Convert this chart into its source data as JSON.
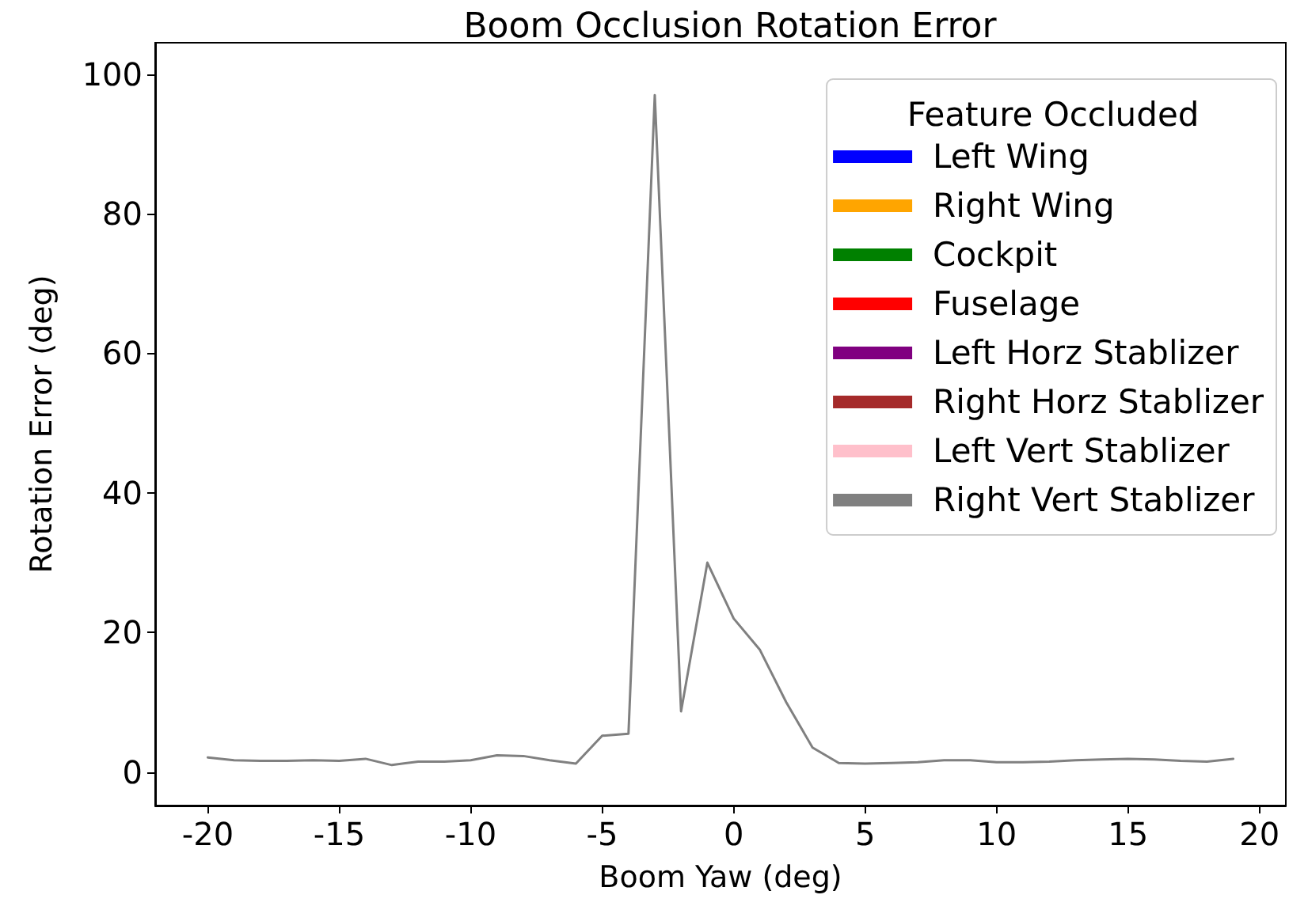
{
  "chart_data": {
    "type": "line",
    "title": "Boom Occlusion Rotation Error",
    "xlabel": "Boom Yaw (deg)",
    "ylabel": "Rotation Error (deg)",
    "legend_title": "Feature Occluded",
    "x": [
      -20,
      -19,
      -18,
      -17,
      -16,
      -15,
      -14,
      -13,
      -12,
      -11,
      -10,
      -9,
      -8,
      -7,
      -6,
      -5,
      -4,
      -3,
      -2,
      -1,
      0,
      1,
      2,
      3,
      4,
      5,
      6,
      7,
      8,
      9,
      10,
      11,
      12,
      13,
      14,
      15,
      16,
      17,
      18,
      19
    ],
    "series": [
      {
        "name": "Left Wing",
        "color": "#0000ff",
        "values": [
          null,
          null,
          null,
          null,
          null,
          null,
          null,
          null,
          null,
          null,
          null,
          null,
          null,
          null,
          null,
          null,
          null,
          null,
          null,
          null,
          null,
          null,
          null,
          null,
          null,
          null,
          null,
          null,
          null,
          null,
          null,
          null,
          null,
          null,
          null,
          null,
          null,
          null,
          null,
          null
        ]
      },
      {
        "name": "Right Wing",
        "color": "#ffa500",
        "values": [
          null,
          null,
          null,
          null,
          null,
          null,
          null,
          null,
          null,
          null,
          null,
          null,
          null,
          null,
          null,
          null,
          null,
          null,
          null,
          null,
          null,
          null,
          null,
          null,
          null,
          null,
          null,
          null,
          null,
          null,
          null,
          null,
          null,
          null,
          null,
          null,
          null,
          null,
          null,
          null
        ]
      },
      {
        "name": "Cockpit",
        "color": "#008000",
        "values": [
          null,
          null,
          null,
          null,
          null,
          null,
          null,
          null,
          null,
          null,
          null,
          null,
          null,
          null,
          null,
          null,
          null,
          null,
          null,
          null,
          null,
          null,
          null,
          null,
          null,
          null,
          null,
          null,
          null,
          null,
          null,
          null,
          null,
          null,
          null,
          null,
          null,
          null,
          null,
          null
        ]
      },
      {
        "name": "Fuselage",
        "color": "#ff0000",
        "values": [
          null,
          null,
          null,
          null,
          null,
          null,
          null,
          null,
          null,
          null,
          null,
          null,
          null,
          null,
          null,
          null,
          null,
          null,
          null,
          null,
          null,
          null,
          null,
          null,
          null,
          null,
          null,
          null,
          null,
          null,
          null,
          null,
          null,
          null,
          null,
          null,
          null,
          null,
          null,
          null
        ]
      },
      {
        "name": "Left Horz Stablizer",
        "color": "#800080",
        "values": [
          null,
          null,
          null,
          null,
          null,
          null,
          null,
          null,
          null,
          null,
          null,
          null,
          null,
          null,
          null,
          null,
          null,
          null,
          null,
          null,
          null,
          null,
          null,
          null,
          null,
          null,
          null,
          null,
          null,
          null,
          null,
          null,
          null,
          null,
          null,
          null,
          null,
          null,
          null,
          null
        ]
      },
      {
        "name": "Right Horz Stablizer",
        "color": "#a52a2a",
        "values": [
          null,
          null,
          null,
          null,
          null,
          null,
          null,
          null,
          null,
          null,
          null,
          null,
          null,
          null,
          null,
          null,
          null,
          null,
          null,
          null,
          null,
          null,
          null,
          null,
          null,
          null,
          null,
          null,
          null,
          null,
          null,
          null,
          null,
          null,
          null,
          null,
          null,
          null,
          null,
          null
        ]
      },
      {
        "name": "Left Vert Stablizer",
        "color": "#ffc0cb",
        "values": [
          null,
          null,
          null,
          null,
          null,
          null,
          null,
          null,
          null,
          null,
          null,
          null,
          null,
          null,
          null,
          null,
          null,
          null,
          null,
          null,
          null,
          null,
          null,
          null,
          null,
          null,
          null,
          null,
          null,
          null,
          null,
          null,
          null,
          null,
          null,
          null,
          null,
          null,
          null,
          null
        ]
      },
      {
        "name": "Right Vert Stablizer",
        "color": "#808080",
        "values": [
          2.1,
          1.7,
          1.6,
          1.6,
          1.7,
          1.6,
          1.9,
          1.0,
          1.5,
          1.5,
          1.7,
          2.4,
          2.3,
          1.7,
          1.2,
          5.2,
          5.5,
          97,
          8.7,
          30,
          22,
          17.5,
          10,
          3.5,
          1.3,
          1.2,
          1.3,
          1.4,
          1.7,
          1.7,
          1.4,
          1.4,
          1.5,
          1.7,
          1.8,
          1.9,
          1.8,
          1.6,
          1.5,
          1.9
        ]
      }
    ],
    "xlim": [
      -22,
      21
    ],
    "xticks": [
      -20,
      -15,
      -10,
      -5,
      0,
      5,
      10,
      15,
      20
    ],
    "ylim": [
      -4.8,
      104.5
    ],
    "yticks": [
      0,
      20,
      40,
      60,
      80,
      100
    ],
    "grid": false,
    "legend": "top right",
    "marker": "none",
    "line_style": "solid"
  }
}
